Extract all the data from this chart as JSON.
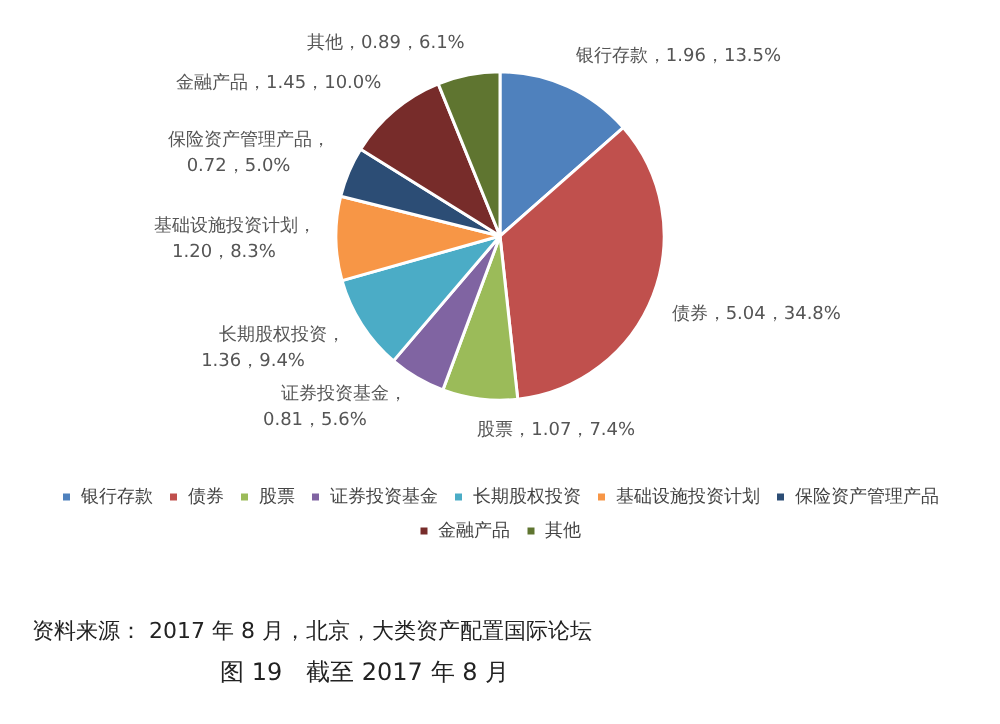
{
  "chart_data": {
    "type": "pie",
    "categories": [
      "银行存款",
      "债券",
      "股票",
      "证券投资基金",
      "长期股权投资",
      "基础设施投资计划",
      "保险资产管理产品",
      "金融产品",
      "其他"
    ],
    "values": [
      1.96,
      5.04,
      1.07,
      0.81,
      1.36,
      1.2,
      0.72,
      1.45,
      0.89
    ],
    "colors": [
      "#4f81bd",
      "#c0504d",
      "#9bbb59",
      "#8064a2",
      "#4bacc6",
      "#f79646",
      "#2c4d75",
      "#772c2a",
      "#5f7530"
    ],
    "value_labels": [
      "银行存款，1.96，13.5%",
      "债券，5.04，34.8%",
      "股票，1.07，7.4%",
      "证券投资基金，0.81，5.6%",
      "长期股权投资，1.36，9.4%",
      "基础设施投资计划，1.20，8.3%",
      "保险资产管理产品，0.72，5.0%",
      "金融产品，1.45，10.0%",
      "其他，0.89，6.1%"
    ],
    "legend": "bottom",
    "annotations": [
      "资料来源： 2017 年 8 月，北京，大类资产配置国际论坛",
      "图 19　截至 2017 年 8 月"
    ]
  }
}
